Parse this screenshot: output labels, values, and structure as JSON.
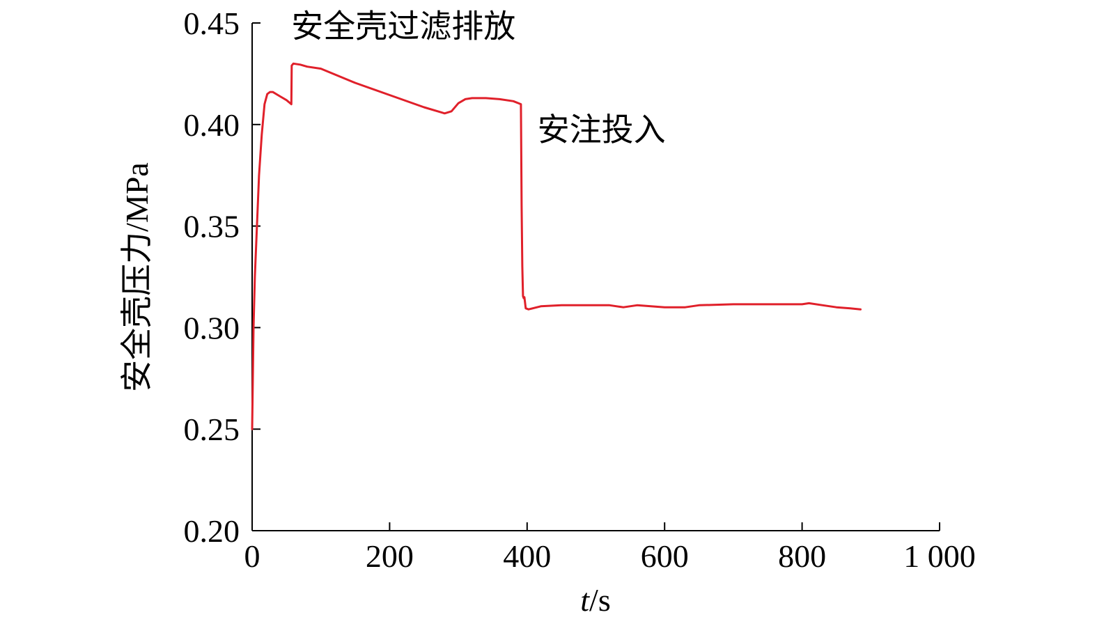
{
  "chart_data": {
    "type": "line",
    "title": "",
    "xlabel": "t/s",
    "xlabel_italic_part": "t",
    "xlabel_rest": "/s",
    "ylabel": "安全壳压力/MPa",
    "xlim": [
      0,
      1000
    ],
    "ylim": [
      0.2,
      0.45
    ],
    "xticks": [
      0,
      200,
      400,
      600,
      800,
      1000
    ],
    "xtick_labels": [
      "0",
      "200",
      "400",
      "600",
      "800",
      "1 000"
    ],
    "yticks": [
      0.2,
      0.25,
      0.3,
      0.35,
      0.4,
      0.45
    ],
    "ytick_labels": [
      "0.20",
      "0.25",
      "0.30",
      "0.35",
      "0.40",
      "0.45"
    ],
    "grid": false,
    "legend": "none",
    "series": [
      {
        "color": "#e0202a",
        "x": [
          0,
          1,
          2,
          4,
          7,
          10,
          14,
          18,
          22,
          26,
          30,
          40,
          50,
          57,
          57.5,
          60,
          70,
          80,
          100,
          150,
          200,
          250,
          280,
          290,
          300,
          310,
          320,
          340,
          360,
          380,
          391,
          392,
          393,
          394,
          395,
          396,
          398,
          402,
          420,
          450,
          480,
          500,
          520,
          540,
          560,
          580,
          600,
          620,
          630,
          650,
          700,
          750,
          800,
          810,
          830,
          850,
          870,
          885
        ],
        "y": [
          0.25,
          0.275,
          0.3,
          0.325,
          0.35,
          0.375,
          0.395,
          0.41,
          0.415,
          0.416,
          0.416,
          0.414,
          0.412,
          0.41,
          0.429,
          0.43,
          0.4295,
          0.4285,
          0.4275,
          0.4205,
          0.4145,
          0.4085,
          0.4055,
          0.4065,
          0.4105,
          0.4125,
          0.413,
          0.413,
          0.4125,
          0.4115,
          0.41,
          0.36,
          0.33,
          0.3155,
          0.3145,
          0.315,
          0.3095,
          0.309,
          0.3105,
          0.311,
          0.311,
          0.311,
          0.311,
          0.31,
          0.311,
          0.3105,
          0.31,
          0.31,
          0.31,
          0.311,
          0.3115,
          0.3115,
          0.3115,
          0.312,
          0.311,
          0.31,
          0.3095,
          0.309
        ]
      }
    ],
    "annotations": [
      {
        "text": "安全壳过滤排放",
        "x": 57,
        "y": 0.443
      },
      {
        "text": "安注投入",
        "x": 415,
        "y": 0.392
      }
    ]
  }
}
